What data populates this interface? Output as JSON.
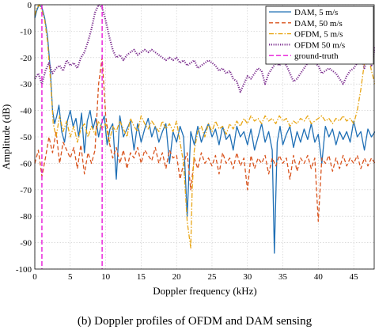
{
  "chart_data": {
    "type": "line",
    "caption": "(b) Doppler profiles of OFDM and DAM sensing",
    "xlabel": "Doppler frequency (kHz)",
    "ylabel": "Amplitude (dB)",
    "xlim": [
      0,
      48
    ],
    "ylim": [
      -100,
      0
    ],
    "xticks": [
      0,
      5,
      10,
      15,
      20,
      25,
      30,
      35,
      40,
      45
    ],
    "yticks": [
      0,
      -10,
      -20,
      -30,
      -40,
      -50,
      -60,
      -70,
      -80,
      -90,
      -100
    ],
    "grid": true,
    "legend_position": "top-right",
    "series": [
      {
        "name": "DAM, 5 m/s",
        "color": "#1f6fb5",
        "style": "solid",
        "x": [
          0,
          0.3,
          0.6,
          1.0,
          1.4,
          1.8,
          2.2,
          2.5,
          2.8,
          3.1,
          3.4,
          3.8,
          4.2,
          4.6,
          5.0,
          5.4,
          5.8,
          6.2,
          6.6,
          7.0,
          7.4,
          7.8,
          8.2,
          8.6,
          9.0,
          9.4,
          9.8,
          10.2,
          10.6,
          11.0,
          11.5,
          12.0,
          12.5,
          13.0,
          13.5,
          14.0,
          14.5,
          15.0,
          15.5,
          16.0,
          16.5,
          17.0,
          17.5,
          18.0,
          18.5,
          19.0,
          19.5,
          20.0,
          20.5,
          21.0,
          21.5,
          22.0,
          22.5,
          23.0,
          23.5,
          24.0,
          24.5,
          25.0,
          25.5,
          26.0,
          26.5,
          27.0,
          27.5,
          28.0,
          28.5,
          29.0,
          29.5,
          30.0,
          30.5,
          31.0,
          31.5,
          32.0,
          32.5,
          33.0,
          33.5,
          33.8,
          34.2,
          34.6,
          35.0,
          35.5,
          36.0,
          36.5,
          37.0,
          37.5,
          38.0,
          38.5,
          39.0,
          39.5,
          40.0,
          40.5,
          41.0,
          41.5,
          42.0,
          42.5,
          43.0,
          43.5,
          44.0,
          44.5,
          45.0,
          45.5,
          46.0,
          46.5,
          47.0,
          47.5,
          48.0
        ],
        "y": [
          -5,
          -2,
          0,
          -1,
          -5,
          -12,
          -25,
          -40,
          -45,
          -42,
          -38,
          -48,
          -52,
          -44,
          -40,
          -46,
          -43,
          -50,
          -41,
          -56,
          -44,
          -40,
          -47,
          -43,
          -50,
          -45,
          -42,
          -53,
          -47,
          -45,
          -66,
          -42,
          -50,
          -47,
          -44,
          -55,
          -45,
          -52,
          -47,
          -43,
          -50,
          -46,
          -52,
          -48,
          -45,
          -60,
          -48,
          -52,
          -46,
          -50,
          -80,
          -48,
          -53,
          -46,
          -52,
          -48,
          -45,
          -50,
          -47,
          -53,
          -46,
          -51,
          -49,
          -55,
          -46,
          -50,
          -48,
          -53,
          -47,
          -55,
          -50,
          -45,
          -52,
          -48,
          -55,
          -94,
          -52,
          -46,
          -53,
          -49,
          -46,
          -54,
          -48,
          -52,
          -47,
          -51,
          -45,
          -52,
          -49,
          -60,
          -46,
          -50,
          -47,
          -53,
          -48,
          -51,
          -48,
          -52,
          -44,
          -50,
          -48,
          -55,
          -47,
          -50,
          -48
        ]
      },
      {
        "name": "DAM, 50 m/s",
        "color": "#d9541e",
        "style": "dashed",
        "x": [
          0,
          0.5,
          1.0,
          1.5,
          2.0,
          2.5,
          3.0,
          3.5,
          4.0,
          4.5,
          5.0,
          5.5,
          6.0,
          6.5,
          7.0,
          7.5,
          8.0,
          8.5,
          9.0,
          9.5,
          10.0,
          10.5,
          11.0,
          11.5,
          12.0,
          12.5,
          13.0,
          13.5,
          14.0,
          14.5,
          15.0,
          15.5,
          16.0,
          16.5,
          17.0,
          17.5,
          18.0,
          18.5,
          19.0,
          19.5,
          20.0,
          20.5,
          21.0,
          21.5,
          22.0,
          22.5,
          23.0,
          23.5,
          24.0,
          24.5,
          25.0,
          25.5,
          26.0,
          26.5,
          27.0,
          27.5,
          28.0,
          28.5,
          29.0,
          29.5,
          30.0,
          30.5,
          31.0,
          31.5,
          32.0,
          32.5,
          33.0,
          33.5,
          34.0,
          34.5,
          35.0,
          35.5,
          36.0,
          36.5,
          37.0,
          37.5,
          38.0,
          38.5,
          39.0,
          39.5,
          40.0,
          40.5,
          41.0,
          41.5,
          42.0,
          42.5,
          43.0,
          43.5,
          44.0,
          44.5,
          45.0,
          45.5,
          46.0,
          46.5,
          47.0,
          47.5,
          48.0
        ],
        "y": [
          -60,
          -55,
          -65,
          -58,
          -50,
          -56,
          -48,
          -60,
          -52,
          -55,
          -58,
          -54,
          -62,
          -53,
          -64,
          -56,
          -60,
          -55,
          -30,
          -20,
          -42,
          -52,
          -58,
          -54,
          -60,
          -55,
          -62,
          -56,
          -58,
          -54,
          -60,
          -55,
          -57,
          -59,
          -54,
          -60,
          -56,
          -62,
          -55,
          -58,
          -57,
          -66,
          -60,
          -56,
          -70,
          -58,
          -62,
          -56,
          -60,
          -58,
          -61,
          -57,
          -64,
          -56,
          -60,
          -58,
          -62,
          -56,
          -61,
          -58,
          -70,
          -57,
          -62,
          -58,
          -60,
          -57,
          -64,
          -58,
          -61,
          -57,
          -60,
          -58,
          -66,
          -57,
          -63,
          -58,
          -60,
          -57,
          -62,
          -58,
          -82,
          -58,
          -60,
          -57,
          -63,
          -58,
          -62,
          -57,
          -61,
          -58,
          -60,
          -57,
          -62,
          -58,
          -61,
          -58,
          -60
        ]
      },
      {
        "name": "OFDM, 5 m/s",
        "color": "#e8a616",
        "style": "dashdot",
        "x": [
          0,
          0.3,
          0.6,
          1.0,
          1.4,
          1.8,
          2.2,
          2.6,
          3.0,
          3.5,
          4.0,
          4.5,
          5.0,
          5.5,
          6.0,
          6.5,
          7.0,
          7.5,
          8.0,
          8.5,
          9.0,
          9.5,
          10.0,
          10.5,
          11.0,
          11.5,
          12.0,
          12.5,
          13.0,
          13.5,
          14.0,
          14.5,
          15.0,
          15.5,
          16.0,
          16.5,
          17.0,
          17.5,
          18.0,
          18.5,
          19.0,
          19.5,
          20.0,
          20.5,
          21.0,
          21.5,
          22.0,
          22.2,
          22.5,
          23.0,
          23.5,
          24.0,
          24.5,
          25.0,
          25.5,
          26.0,
          26.5,
          27.0,
          27.5,
          28.0,
          28.5,
          29.0,
          29.5,
          30.0,
          30.5,
          31.0,
          31.5,
          32.0,
          32.5,
          33.0,
          33.5,
          34.0,
          34.5,
          35.0,
          35.5,
          36.0,
          36.5,
          37.0,
          37.5,
          38.0,
          38.5,
          39.0,
          39.5,
          40.0,
          40.5,
          41.0,
          41.5,
          42.0,
          42.5,
          43.0,
          43.5,
          44.0,
          44.5,
          45.0,
          45.5,
          46.0,
          46.5,
          47.0,
          47.5,
          48.0
        ],
        "y": [
          -4,
          -1,
          0,
          -2,
          -6,
          -14,
          -28,
          -45,
          -50,
          -42,
          -48,
          -44,
          -50,
          -46,
          -52,
          -47,
          -45,
          -50,
          -46,
          -49,
          -44,
          -47,
          -45,
          -52,
          -46,
          -48,
          -44,
          -47,
          -50,
          -43,
          -46,
          -48,
          -42,
          -45,
          -47,
          -44,
          -46,
          -48,
          -44,
          -47,
          -45,
          -48,
          -44,
          -52,
          -60,
          -82,
          -92,
          -70,
          -55,
          -48,
          -46,
          -50,
          -45,
          -48,
          -44,
          -47,
          -46,
          -49,
          -45,
          -47,
          -44,
          -46,
          -43,
          -45,
          -42,
          -44,
          -43,
          -45,
          -42,
          -44,
          -43,
          -45,
          -42,
          -44,
          -43,
          -46,
          -44,
          -45,
          -43,
          -44,
          -42,
          -45,
          -44,
          -43,
          -42,
          -44,
          -43,
          -45,
          -43,
          -44,
          -42,
          -44,
          -43,
          -45,
          -40,
          -32,
          -22,
          -18,
          -25,
          -30
        ]
      },
      {
        "name": "OFDM 50 m/s",
        "color": "#7b2d8e",
        "style": "dotted",
        "x": [
          0,
          0.5,
          1.0,
          1.5,
          2.0,
          2.5,
          3.0,
          3.5,
          4.0,
          4.5,
          5.0,
          5.5,
          6.0,
          6.5,
          7.0,
          7.5,
          8.0,
          8.5,
          9.0,
          9.5,
          10.0,
          10.5,
          11.0,
          11.5,
          12.0,
          12.5,
          13.0,
          13.5,
          14.0,
          14.5,
          15.0,
          15.5,
          16.0,
          16.5,
          17.0,
          17.5,
          18.0,
          18.5,
          19.0,
          19.5,
          20.0,
          20.5,
          21.0,
          21.5,
          22.0,
          22.5,
          23.0,
          23.5,
          24.0,
          24.5,
          25.0,
          25.5,
          26.0,
          26.5,
          27.0,
          27.5,
          28.0,
          28.5,
          29.0,
          29.5,
          30.0,
          30.5,
          31.0,
          31.5,
          32.0,
          32.5,
          33.0,
          33.5,
          34.0,
          34.5,
          35.0,
          35.5,
          36.0,
          36.5,
          37.0,
          37.5,
          38.0,
          38.5,
          39.0,
          39.5,
          40.0,
          40.5,
          41.0,
          41.5,
          42.0,
          42.5,
          43.0,
          43.5,
          44.0,
          44.5,
          45.0,
          45.5,
          46.0,
          46.5,
          47.0,
          47.5,
          48.0
        ],
        "y": [
          -28,
          -26,
          -30,
          -25,
          -22,
          -26,
          -24,
          -23,
          -25,
          -21,
          -23,
          -22,
          -24,
          -20,
          -18,
          -14,
          -9,
          -3,
          0,
          -1,
          -6,
          -12,
          -17,
          -20,
          -19,
          -21,
          -19,
          -18,
          -17,
          -19,
          -18,
          -17,
          -18,
          -17,
          -18,
          -19,
          -20,
          -21,
          -20,
          -21,
          -20,
          -22,
          -21,
          -23,
          -22,
          -21,
          -24,
          -23,
          -22,
          -21,
          -22,
          -23,
          -25,
          -24,
          -26,
          -25,
          -28,
          -29,
          -33,
          -30,
          -27,
          -28,
          -26,
          -24,
          -25,
          -30,
          -26,
          -24,
          -22,
          -23,
          -21,
          -23,
          -26,
          -29,
          -28,
          -26,
          -24,
          -22,
          -20,
          -22,
          -23,
          -26,
          -25,
          -24,
          -25,
          -26,
          -28,
          -30,
          -27,
          -25,
          -24,
          -22,
          -19,
          -24,
          -20,
          -23,
          -16
        ]
      },
      {
        "name": "ground-truth",
        "color": "#e81ad9",
        "style": "dashed",
        "type": "vertical",
        "x_positions": [
          1,
          9.5
        ]
      }
    ]
  }
}
